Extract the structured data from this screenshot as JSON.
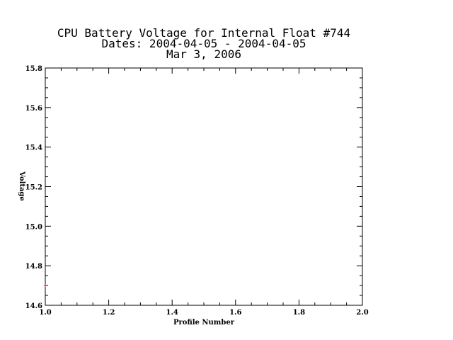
{
  "chart_data": {
    "type": "scatter",
    "title_lines": [
      "CPU Battery Voltage for Internal Float #744",
      "Dates:  2004-04-05 -  2004-04-05",
      "Mar  3, 2006"
    ],
    "xlabel": "Profile Number",
    "ylabel": "Voltage",
    "xlim": [
      1.0,
      2.0
    ],
    "ylim": [
      14.6,
      15.8
    ],
    "x_ticks": [
      1.0,
      1.2,
      1.4,
      1.6,
      1.8,
      2.0
    ],
    "x_tick_labels": [
      "1.0",
      "1.2",
      "1.4",
      "1.6",
      "1.8",
      "2.0"
    ],
    "y_ticks": [
      14.6,
      14.8,
      15.0,
      15.2,
      15.4,
      15.6,
      15.8
    ],
    "y_tick_labels": [
      "14.6",
      "14.8",
      "15.0",
      "15.2",
      "15.4",
      "15.6",
      "15.8"
    ],
    "grid": false,
    "series": [
      {
        "color": "#ff0000",
        "points": [
          {
            "x": 1.0,
            "y": 14.7
          }
        ]
      }
    ]
  }
}
